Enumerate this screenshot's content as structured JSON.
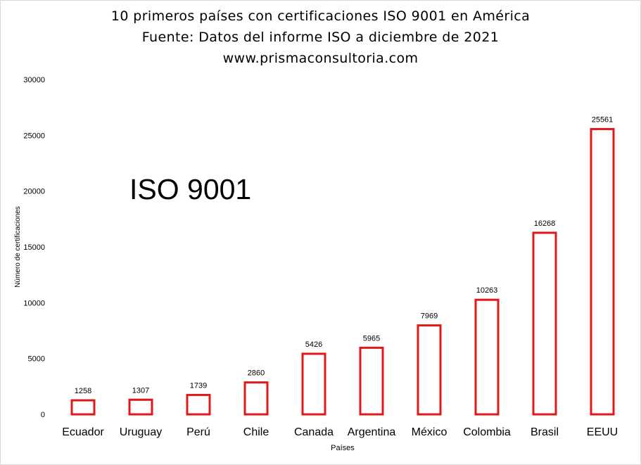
{
  "title_lines": [
    "10 primeros países con certificaciones ISO 9001 en América",
    "Fuente: Datos del informe ISO  a diciembre de 2021",
    "www.prismaconsultoria.com"
  ],
  "annotation": "ISO 9001",
  "colors": {
    "bar_outline": "#e01818",
    "bar_fill": "#ffffff",
    "text": "#000000",
    "frame": "#d9d9d9"
  },
  "chart_data": {
    "type": "bar",
    "title": "10 primeros países con certificaciones ISO 9001 en América",
    "subtitle": "Fuente: Datos del informe ISO  a diciembre de 2021",
    "xlabel": "Países",
    "ylabel": "Número de certificaciones",
    "categories": [
      "Ecuador",
      "Uruguay",
      "Perú",
      "Chile",
      "Canada",
      "Argentina",
      "México",
      "Colombia",
      "Brasil",
      "EEUU"
    ],
    "values": [
      1258,
      1307,
      1739,
      2860,
      5426,
      5965,
      7969,
      10263,
      16268,
      25561
    ],
    "ylim": [
      0,
      30000
    ],
    "yticks": [
      0,
      5000,
      10000,
      15000,
      20000,
      25000,
      30000
    ],
    "grid": false,
    "legend": "none",
    "data_labels": true
  }
}
